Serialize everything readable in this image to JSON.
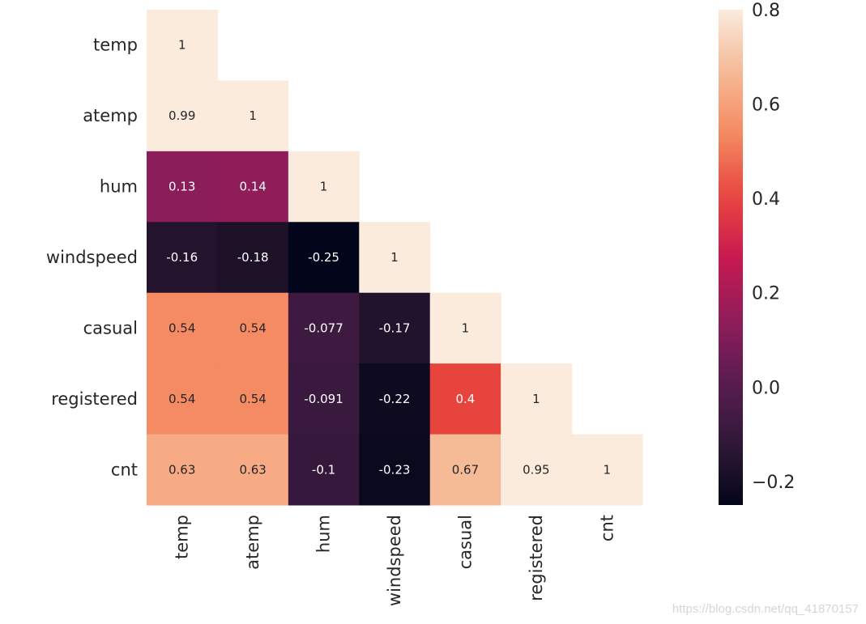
{
  "chart_data": {
    "type": "heatmap",
    "variables": [
      "temp",
      "atemp",
      "hum",
      "windspeed",
      "casual",
      "registered",
      "cnt"
    ],
    "mask": "upper triangle hidden",
    "matrix": [
      [
        1
      ],
      [
        0.99,
        1
      ],
      [
        0.13,
        0.14,
        1
      ],
      [
        -0.16,
        -0.18,
        -0.25,
        1
      ],
      [
        0.54,
        0.54,
        -0.077,
        -0.17,
        1
      ],
      [
        0.54,
        0.54,
        -0.091,
        -0.22,
        0.4,
        1
      ],
      [
        0.63,
        0.63,
        -0.1,
        -0.23,
        0.67,
        0.95,
        1
      ]
    ],
    "colormap": "rocket",
    "color_range": [
      -0.25,
      0.8
    ],
    "colorbar": {
      "ticks": [
        0.8,
        0.6,
        0.4,
        0.2,
        0.0,
        -0.2
      ],
      "tick_labels": [
        "0.8",
        "0.6",
        "0.4",
        "0.2",
        "0.0",
        "−0.2"
      ]
    },
    "annotated": true
  },
  "watermark": "https://blog.csdn.net/qq_41870157"
}
